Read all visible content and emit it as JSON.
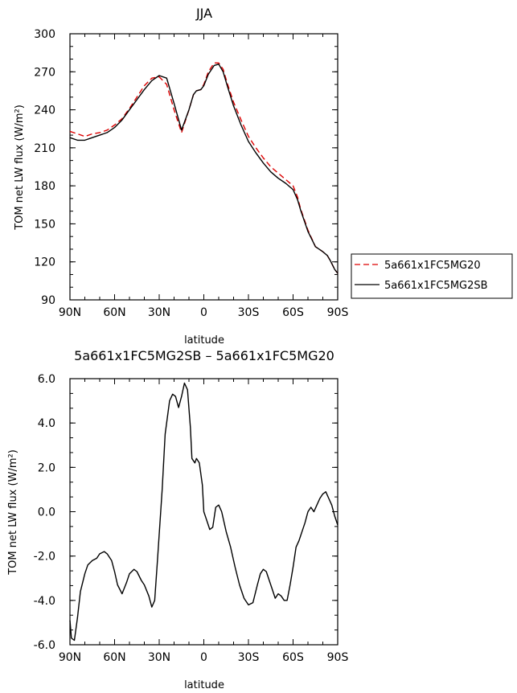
{
  "chart_data": [
    {
      "type": "line",
      "title": "JJA",
      "xlabel": "latitude",
      "ylabel": "TOM net LW flux (W/m²)",
      "x_ticks": [
        "90N",
        "60N",
        "30N",
        "0",
        "30S",
        "60S",
        "90S"
      ],
      "y_ticks": [
        "90",
        "120",
        "150",
        "180",
        "210",
        "240",
        "270",
        "300"
      ],
      "xlim": [
        90,
        -90
      ],
      "ylim": [
        90,
        300
      ],
      "legend_position": "right",
      "series": [
        {
          "name": "5a661x1FC5MG20",
          "color": "#dd0000",
          "dash": "dashed",
          "x": [
            90,
            85,
            80,
            75,
            70,
            65,
            60,
            55,
            50,
            45,
            40,
            35,
            30,
            25,
            20,
            15,
            10,
            7,
            5,
            2,
            0,
            -3,
            -7,
            -10,
            -13,
            -16,
            -20,
            -25,
            -30,
            -35,
            -40,
            -45,
            -50,
            -55,
            -60,
            -63,
            -65,
            -70,
            -75,
            -80,
            -83,
            -85,
            -88,
            -90
          ],
          "y": [
            223,
            221,
            219,
            221,
            222,
            224,
            228,
            233,
            241,
            250,
            259,
            265,
            266,
            260,
            240,
            222,
            240,
            252,
            255,
            256,
            260,
            270,
            277,
            277,
            272,
            260,
            246,
            232,
            219,
            210,
            202,
            195,
            190,
            185,
            180,
            171,
            162,
            145,
            132,
            128,
            125,
            121,
            114,
            111
          ]
        },
        {
          "name": "5a661x1FC5MG2SB",
          "color": "#000000",
          "dash": "solid",
          "x": [
            90,
            85,
            80,
            75,
            70,
            65,
            60,
            55,
            50,
            45,
            40,
            35,
            30,
            25,
            20,
            15,
            10,
            7,
            5,
            2,
            0,
            -3,
            -7,
            -10,
            -13,
            -16,
            -20,
            -25,
            -30,
            -35,
            -40,
            -45,
            -50,
            -55,
            -60,
            -63,
            -65,
            -70,
            -75,
            -80,
            -83,
            -85,
            -88,
            -90
          ],
          "y": [
            218,
            216,
            216,
            218,
            220,
            222,
            226,
            232,
            240,
            248,
            256,
            263,
            267,
            265,
            245,
            224,
            240,
            252,
            255,
            256,
            259,
            268,
            275,
            276,
            270,
            258,
            243,
            228,
            215,
            206,
            198,
            191,
            186,
            182,
            177,
            169,
            161,
            144,
            132,
            128,
            125,
            121,
            114,
            111
          ]
        }
      ]
    },
    {
      "type": "line",
      "title": "5a661x1FC5MG2SB – 5a661x1FC5MG20",
      "xlabel": "latitude",
      "ylabel": "TOM net LW flux (W/m²)",
      "x_ticks": [
        "90N",
        "60N",
        "30N",
        "0",
        "30S",
        "60S",
        "90S"
      ],
      "y_ticks": [
        "6.0",
        "4.0",
        "2.0",
        "0.0",
        "-2.0",
        "-4.0",
        "-6.0"
      ],
      "xlim": [
        90,
        -90
      ],
      "ylim": [
        -6,
        6
      ],
      "series": [
        {
          "color": "#000000",
          "dash": "solid",
          "x": [
            90,
            89,
            87,
            85,
            83,
            80,
            78,
            75,
            72,
            70,
            67,
            65,
            62,
            60,
            58,
            55,
            52,
            50,
            47,
            45,
            42,
            40,
            37,
            35,
            33,
            31,
            28,
            26,
            23,
            21,
            19,
            17,
            15,
            13,
            11,
            9,
            8,
            6,
            5,
            3,
            1,
            0,
            -2,
            -4,
            -6,
            -8,
            -10,
            -12,
            -15,
            -18,
            -21,
            -24,
            -27,
            -30,
            -33,
            -36,
            -38,
            -40,
            -42,
            -44,
            -46,
            -48,
            -50,
            -52,
            -54,
            -56,
            -58,
            -60,
            -62,
            -64,
            -66,
            -68,
            -70,
            -72,
            -74,
            -76,
            -78,
            -80,
            -82,
            -84,
            -86,
            -88,
            -90
          ],
          "y": [
            -4.9,
            -5.7,
            -5.8,
            -4.8,
            -3.6,
            -2.8,
            -2.4,
            -2.2,
            -2.1,
            -1.9,
            -1.8,
            -1.9,
            -2.2,
            -2.7,
            -3.3,
            -3.7,
            -3.2,
            -2.8,
            -2.6,
            -2.7,
            -3.1,
            -3.3,
            -3.8,
            -4.3,
            -4.0,
            -2.0,
            1.0,
            3.5,
            5.0,
            5.3,
            5.2,
            4.7,
            5.2,
            5.8,
            5.5,
            3.8,
            2.4,
            2.2,
            2.4,
            2.2,
            1.2,
            0.0,
            -0.4,
            -0.8,
            -0.7,
            0.2,
            0.3,
            0.0,
            -0.9,
            -1.6,
            -2.5,
            -3.3,
            -3.9,
            -4.2,
            -4.1,
            -3.3,
            -2.8,
            -2.6,
            -2.7,
            -3.1,
            -3.5,
            -3.9,
            -3.7,
            -3.8,
            -4.0,
            -4.0,
            -3.3,
            -2.5,
            -1.6,
            -1.3,
            -0.9,
            -0.5,
            0.0,
            0.2,
            0.0,
            0.3,
            0.6,
            0.8,
            0.9,
            0.6,
            0.3,
            -0.2,
            -0.6
          ]
        }
      ]
    }
  ]
}
